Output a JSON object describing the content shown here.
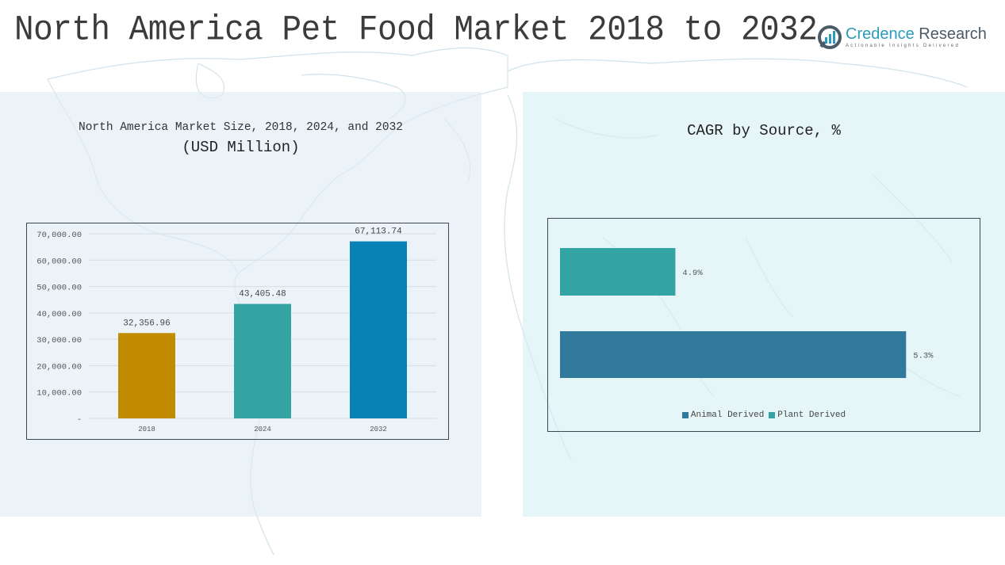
{
  "page_title": "North America Pet Food Market 2018 to 2032",
  "logo": {
    "name_part1": "Credence",
    "name_part2": "Research",
    "tagline": "Actionable Insights Delivered"
  },
  "colors": {
    "bar_2018": "#C28C00",
    "bar_2024": "#33A3A3",
    "bar_2032": "#0882B4",
    "animal_derived": "#317A9B",
    "plant_derived": "#33A3A3"
  },
  "chart_data": [
    {
      "type": "bar",
      "title": "North America Market Size, 2018, 2024, and 2032",
      "subtitle": "(USD Million)",
      "xlabel": "",
      "ylabel": "",
      "categories": [
        "2018",
        "2024",
        "2032"
      ],
      "values": [
        32356.96,
        43405.48,
        67113.74
      ],
      "value_labels": [
        "32,356.96",
        "43,405.48",
        "67,113.74"
      ],
      "ylim": [
        0,
        70000
      ],
      "yticks": [
        0,
        10000,
        20000,
        30000,
        40000,
        50000,
        60000,
        70000
      ],
      "ytick_labels": [
        "-",
        "10,000.00",
        "20,000.00",
        "30,000.00",
        "40,000.00",
        "50,000.00",
        "60,000.00",
        "70,000.00"
      ],
      "grid": true,
      "legend": "none"
    },
    {
      "type": "bar",
      "orientation": "horizontal",
      "title": "CAGR by Source, %",
      "categories": [
        "Plant Derived",
        "Animal Derived"
      ],
      "values": [
        4.9,
        5.3
      ],
      "value_labels": [
        "4.9%",
        "5.3%"
      ],
      "xlim": [
        4.7,
        5.4
      ],
      "grid": false,
      "legend": "bottom",
      "legend_entries": [
        "Animal Derived",
        "Plant Derived"
      ]
    }
  ]
}
